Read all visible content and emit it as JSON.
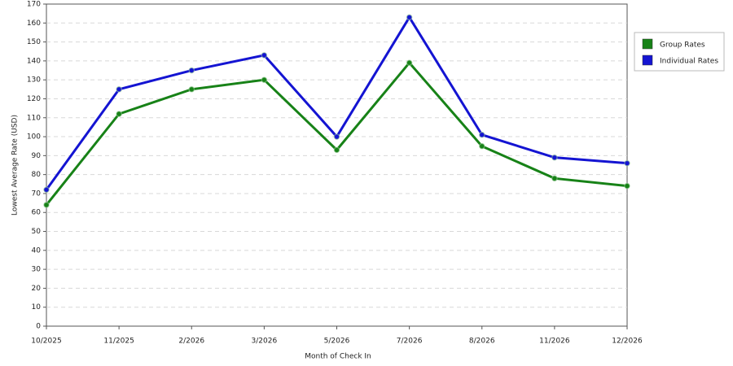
{
  "chart_data": {
    "type": "line",
    "x_label": "Month of Check In",
    "y_label": "Lowest Average Rate (USD)",
    "categories": [
      "10/2025",
      "11/2025",
      "2/2026",
      "3/2026",
      "5/2026",
      "7/2026",
      "8/2026",
      "11/2026",
      "12/2026"
    ],
    "series": [
      {
        "name": "Group Rates",
        "color": "#178217",
        "values": [
          64,
          112,
          125,
          130,
          93,
          139,
          95,
          78,
          74
        ]
      },
      {
        "name": "Individual Rates",
        "color": "#1414d2",
        "values": [
          72,
          125,
          135,
          143,
          100,
          163,
          101,
          89,
          86
        ]
      }
    ],
    "ylim": [
      0,
      170
    ],
    "yticks": [
      0,
      10,
      20,
      30,
      40,
      50,
      60,
      70,
      80,
      90,
      100,
      110,
      120,
      130,
      140,
      150,
      160,
      170
    ],
    "grid": true,
    "legend": "right"
  }
}
